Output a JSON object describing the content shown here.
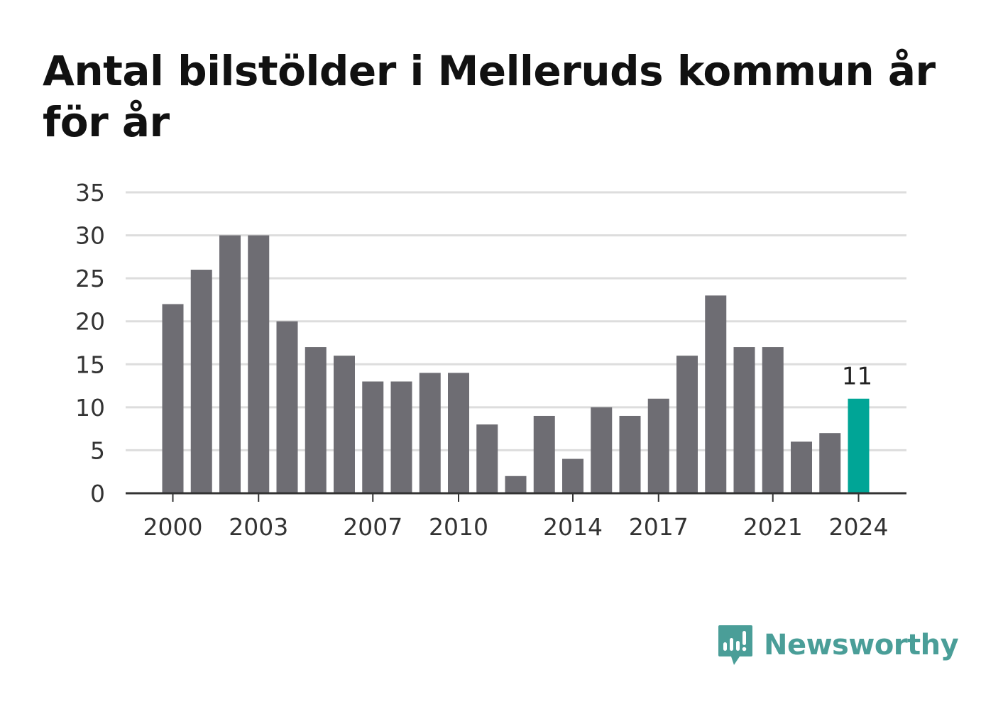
{
  "title": "Antal bilstölder i Melleruds kommun år för år",
  "brand": {
    "name": "Newsworthy",
    "icon": "bar-chart-speech-bubble-icon",
    "color": "#4a9e98"
  },
  "colors": {
    "bar": "#6e6d73",
    "highlight": "#00a596",
    "grid": "#dddddd",
    "axis": "#333333"
  },
  "chart_data": {
    "type": "bar",
    "title": "Antal bilstölder i Melleruds kommun år för år",
    "xlabel": "",
    "ylabel": "",
    "categories": [
      2000,
      2001,
      2002,
      2003,
      2004,
      2005,
      2006,
      2007,
      2008,
      2009,
      2010,
      2011,
      2012,
      2013,
      2014,
      2015,
      2016,
      2017,
      2018,
      2019,
      2020,
      2021,
      2022,
      2023,
      2024
    ],
    "values": [
      22,
      26,
      30,
      30,
      20,
      17,
      16,
      13,
      13,
      14,
      14,
      8,
      2,
      9,
      4,
      10,
      9,
      11,
      16,
      23,
      17,
      17,
      6,
      7,
      11
    ],
    "x_tick_labels": [
      "2000",
      "2003",
      "2007",
      "2010",
      "2014",
      "2017",
      "2021",
      "2024"
    ],
    "y_ticks": [
      0,
      5,
      10,
      15,
      20,
      25,
      30,
      35
    ],
    "ylim": [
      0,
      35
    ],
    "highlight": {
      "category": 2024,
      "label": "11"
    },
    "grid": true,
    "legend": "none"
  }
}
